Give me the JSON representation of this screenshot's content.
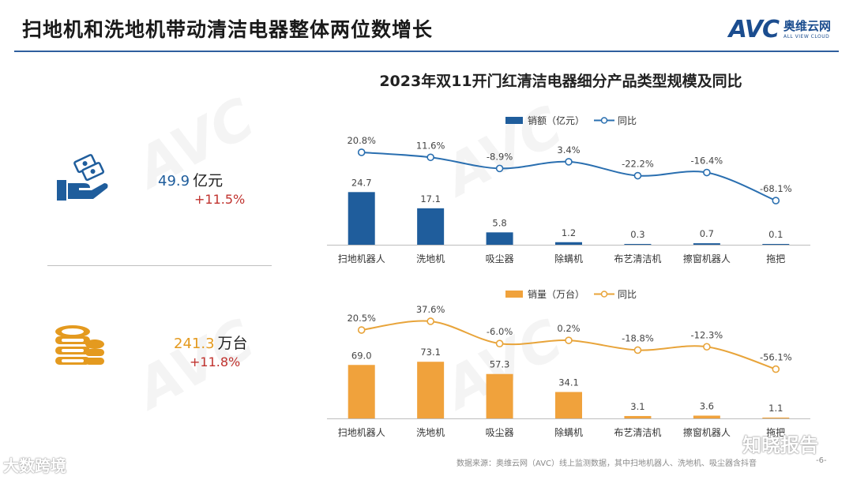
{
  "page": {
    "title": "扫地机和洗地机带动清洁电器整体两位数增长",
    "brand": {
      "avc": "AVC",
      "cn": "奥维云网",
      "en": "ALL VIEW CLOUD"
    },
    "chart_title": "2023年双11开门红清洁电器细分产品类型规模及同比",
    "source": "数据来源：奥维云网（AVC）线上监测数据，其中扫地机器人、洗地机、吸尘器含抖音",
    "page_number": "-6-",
    "corner_watermark": "大数跨境",
    "corner_watermark_2": "知晓报告"
  },
  "kpis": {
    "sales": {
      "value": "49.9",
      "unit": "亿元",
      "growth": "+11.5%"
    },
    "volume": {
      "value": "241.3",
      "unit": "万台",
      "growth": "+11.8%"
    }
  },
  "colors": {
    "blue": "#1f5d9c",
    "blue_line": "#2a6fb0",
    "orange": "#f0a23c",
    "orange_line": "#e8a43a",
    "red": "#c0322e",
    "rule": "#2f5f9e"
  },
  "chart_data": [
    {
      "type": "bar",
      "title": "销额（亿元）",
      "categories": [
        "扫地机器人",
        "洗地机",
        "吸尘器",
        "除螨机",
        "布艺清洁机",
        "擦窗机器人",
        "拖把"
      ],
      "series": [
        {
          "name": "销额（亿元）",
          "type": "bar",
          "values": [
            24.7,
            17.1,
            5.8,
            1.2,
            0.3,
            0.7,
            0.1
          ],
          "labels": [
            "24.7",
            "17.1",
            "5.8",
            "1.2",
            "0.3",
            "0.7",
            "0.1"
          ]
        },
        {
          "name": "同比",
          "type": "line",
          "values": [
            20.8,
            11.6,
            -8.9,
            3.4,
            -22.2,
            -16.4,
            -68.1
          ],
          "labels": [
            "20.8%",
            "11.6%",
            "-8.9%",
            "3.4%",
            "-22.2%",
            "-16.4%",
            "-68.1%"
          ]
        }
      ],
      "legend": [
        "销额（亿元）",
        "同比"
      ],
      "bar_ylim": [
        0,
        40
      ],
      "line_ylim": [
        -100,
        60
      ]
    },
    {
      "type": "bar",
      "title": "销量（万台）",
      "categories": [
        "扫地机器人",
        "洗地机",
        "吸尘器",
        "除螨机",
        "布艺清洁机",
        "擦窗机器人",
        "拖把"
      ],
      "series": [
        {
          "name": "销量（万台）",
          "type": "bar",
          "values": [
            69.0,
            73.1,
            57.3,
            34.1,
            3.1,
            3.6,
            1.1
          ],
          "labels": [
            "69.0",
            "73.1",
            "57.3",
            "34.1",
            "3.1",
            "3.6",
            "1.1"
          ]
        },
        {
          "name": "同比",
          "type": "line",
          "values": [
            20.5,
            37.6,
            -6.0,
            0.2,
            -18.8,
            -12.3,
            -56.1
          ],
          "labels": [
            "20.5%",
            "37.6%",
            "-6.0%",
            "0.2%",
            "-18.8%",
            "-12.3%",
            "-56.1%"
          ]
        }
      ],
      "legend": [
        "销量（万台）",
        "同比"
      ],
      "bar_ylim": [
        0,
        110
      ],
      "line_ylim": [
        -100,
        70
      ]
    }
  ]
}
